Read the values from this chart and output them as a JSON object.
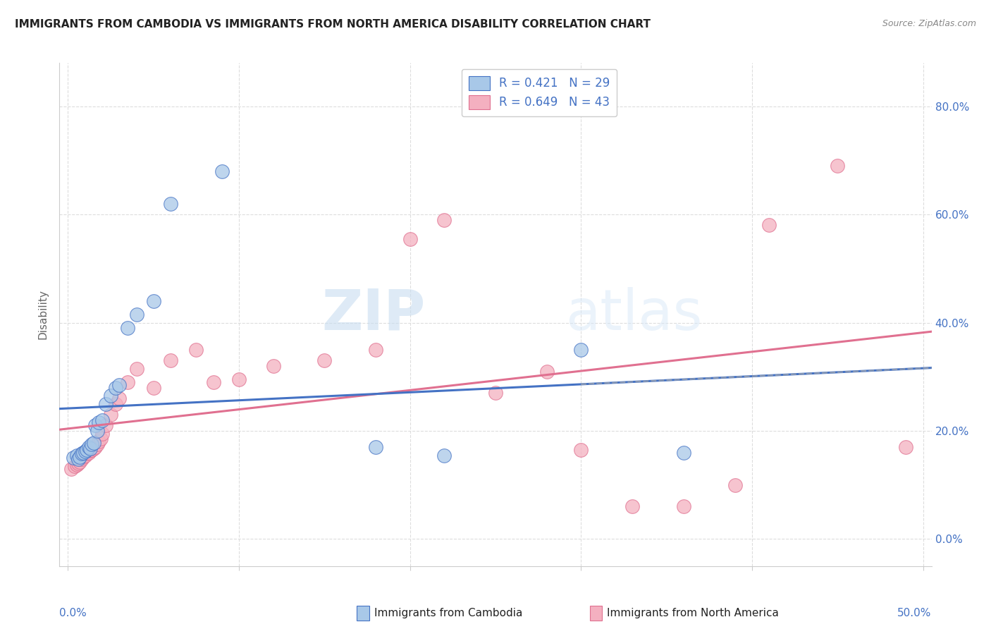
{
  "title": "IMMIGRANTS FROM CAMBODIA VS IMMIGRANTS FROM NORTH AMERICA DISABILITY CORRELATION CHART",
  "source": "Source: ZipAtlas.com",
  "ylabel": "Disability",
  "ytick_values": [
    0.0,
    0.2,
    0.4,
    0.6,
    0.8
  ],
  "xtick_values": [
    0.0,
    0.1,
    0.2,
    0.3,
    0.4,
    0.5
  ],
  "xlim": [
    -0.005,
    0.505
  ],
  "ylim": [
    -0.05,
    0.88
  ],
  "R_cambodia": 0.421,
  "N_cambodia": 29,
  "R_north_america": 0.649,
  "N_north_america": 43,
  "color_cambodia": "#a8c8e8",
  "color_north_america": "#f4b0c0",
  "line_color_cambodia": "#4472c4",
  "line_color_north_america": "#e07090",
  "line_color_dashed": "#aabbdd",
  "scatter_cambodia_x": [
    0.003,
    0.005,
    0.006,
    0.007,
    0.008,
    0.009,
    0.01,
    0.011,
    0.012,
    0.013,
    0.014,
    0.015,
    0.016,
    0.017,
    0.018,
    0.02,
    0.022,
    0.025,
    0.028,
    0.03,
    0.035,
    0.04,
    0.05,
    0.06,
    0.09,
    0.18,
    0.22,
    0.3,
    0.36
  ],
  "scatter_cambodia_y": [
    0.15,
    0.155,
    0.148,
    0.152,
    0.158,
    0.16,
    0.162,
    0.165,
    0.17,
    0.168,
    0.175,
    0.178,
    0.21,
    0.2,
    0.215,
    0.22,
    0.25,
    0.265,
    0.28,
    0.285,
    0.39,
    0.415,
    0.44,
    0.62,
    0.68,
    0.17,
    0.155,
    0.35,
    0.16
  ],
  "scatter_north_america_x": [
    0.002,
    0.004,
    0.005,
    0.006,
    0.007,
    0.008,
    0.009,
    0.01,
    0.011,
    0.012,
    0.013,
    0.014,
    0.015,
    0.016,
    0.017,
    0.018,
    0.019,
    0.02,
    0.022,
    0.025,
    0.028,
    0.03,
    0.035,
    0.04,
    0.05,
    0.06,
    0.075,
    0.085,
    0.1,
    0.12,
    0.15,
    0.18,
    0.2,
    0.22,
    0.25,
    0.28,
    0.3,
    0.33,
    0.36,
    0.39,
    0.41,
    0.45,
    0.49
  ],
  "scatter_north_america_y": [
    0.13,
    0.135,
    0.138,
    0.14,
    0.143,
    0.148,
    0.152,
    0.155,
    0.158,
    0.16,
    0.163,
    0.165,
    0.168,
    0.17,
    0.175,
    0.18,
    0.185,
    0.195,
    0.21,
    0.23,
    0.25,
    0.26,
    0.29,
    0.315,
    0.28,
    0.33,
    0.35,
    0.29,
    0.295,
    0.32,
    0.33,
    0.35,
    0.555,
    0.59,
    0.27,
    0.31,
    0.165,
    0.06,
    0.06,
    0.1,
    0.58,
    0.69,
    0.17
  ],
  "watermark_zip": "ZIP",
  "watermark_atlas": "atlas",
  "legend_label_cambodia": "Immigrants from Cambodia",
  "legend_label_north_america": "Immigrants from North America",
  "tick_color": "#4472c4",
  "grid_color": "#dddddd",
  "spine_color": "#cccccc"
}
